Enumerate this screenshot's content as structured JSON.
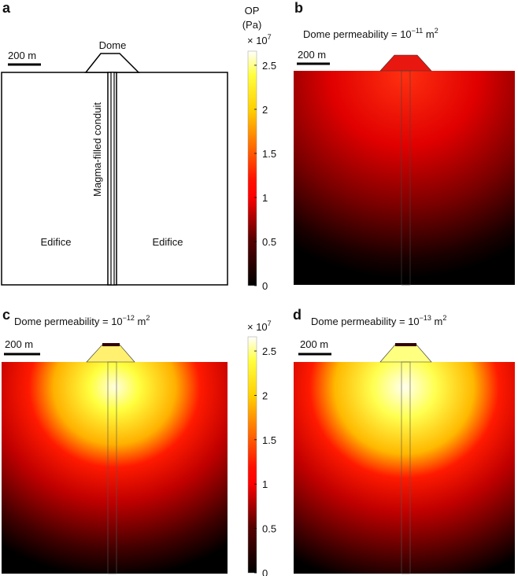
{
  "panels": [
    {
      "label": "a",
      "dome": "Dome",
      "scale": "200 m",
      "conduit": "Magma-filled conduit",
      "edifice_left": "Edifice",
      "edifice_right": "Edifice"
    },
    {
      "label": "b",
      "title": {
        "text": "Dome permeability = 10",
        "exponent": "−11",
        "unit": " m",
        "unit_exponent": "2"
      },
      "scale": "200 m"
    },
    {
      "label": "c",
      "title": {
        "text": "Dome permeability = 10",
        "exponent": "−12",
        "unit": " m",
        "unit_exponent": "2"
      },
      "scale": "200 m"
    },
    {
      "label": "d",
      "title": {
        "text": "Dome permeability = 10",
        "exponent": "−13",
        "unit": " m",
        "unit_exponent": "2"
      },
      "scale": "200 m"
    }
  ],
  "colorbars": [
    {
      "title": "OP",
      "unit": "(Pa)",
      "multiplier": "× 10",
      "multiplier_exponent": "7",
      "range": [
        0,
        2.66
      ],
      "ticks": [
        0,
        0.5,
        1,
        1.5,
        2,
        2.5
      ]
    },
    {
      "multiplier": "× 10",
      "multiplier_exponent": "7",
      "range": [
        0,
        2.66
      ],
      "ticks": [
        0,
        0.5,
        1,
        1.5,
        2,
        2.5
      ]
    }
  ]
}
